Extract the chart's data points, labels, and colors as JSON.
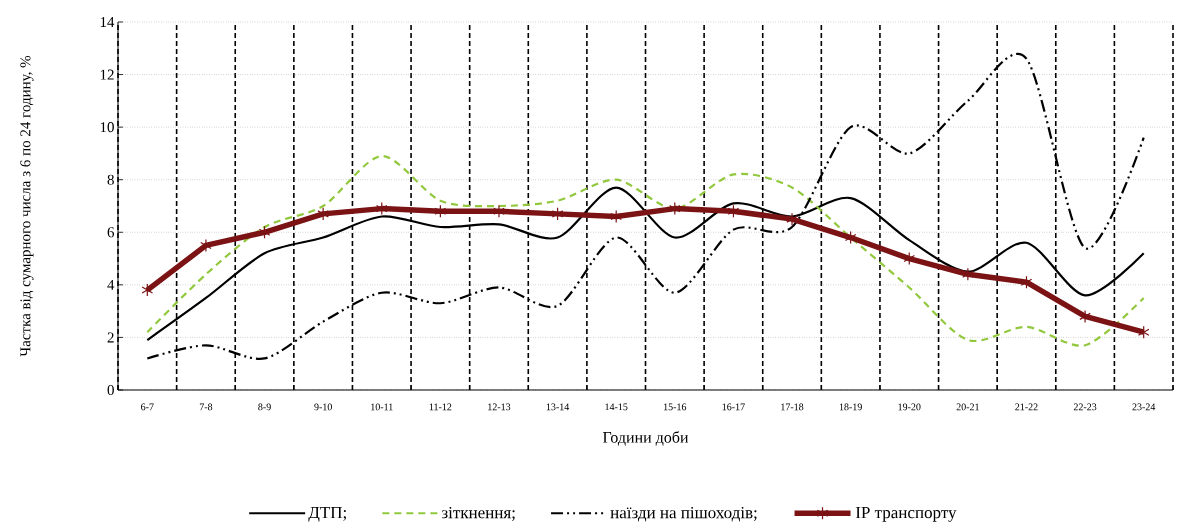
{
  "chart_data": {
    "type": "line",
    "xlabel": "Години доби",
    "ylabel": "Частка від сумарного числа з 6 по 24 годину, %",
    "categories": [
      "6-7",
      "7-8",
      "8-9",
      "9-10",
      "10-11",
      "11-12",
      "12-13",
      "13-14",
      "14-15",
      "15-16",
      "16-17",
      "17-18",
      "18-19",
      "19-20",
      "20-21",
      "21-22",
      "22-23",
      "23-24"
    ],
    "series": [
      {
        "name": "ДТП;",
        "color": "#000000",
        "line_style": "solid",
        "marker": "none",
        "values": [
          1.9,
          3.5,
          5.2,
          5.8,
          6.6,
          6.2,
          6.3,
          5.8,
          7.7,
          5.8,
          7.1,
          6.6,
          7.3,
          5.7,
          4.5,
          5.6,
          3.6,
          5.2
        ]
      },
      {
        "name": "зіткнення;",
        "color": "#92c83e",
        "line_style": "dashed",
        "marker": "none",
        "values": [
          2.2,
          4.4,
          6.2,
          7.0,
          8.9,
          7.2,
          7.0,
          7.2,
          8.0,
          6.9,
          8.2,
          7.7,
          5.8,
          3.9,
          1.9,
          2.4,
          1.7,
          3.5
        ]
      },
      {
        "name": "наїзди на пішоходів;",
        "color": "#000000",
        "line_style": "dashdot",
        "marker": "none",
        "values": [
          1.2,
          1.7,
          1.2,
          2.6,
          3.7,
          3.3,
          3.9,
          3.2,
          5.8,
          3.7,
          6.1,
          6.2,
          10.0,
          9.0,
          11.0,
          12.6,
          5.4,
          9.6
        ]
      },
      {
        "name": "ІР транспорту",
        "color": "#7b1315",
        "line_style": "solid",
        "marker": "cross",
        "values": [
          3.8,
          5.5,
          6.0,
          6.7,
          6.9,
          6.8,
          6.8,
          6.7,
          6.6,
          6.9,
          6.8,
          6.5,
          5.8,
          5.0,
          4.4,
          4.1,
          2.8,
          2.2
        ]
      }
    ],
    "ylim": [
      0,
      14
    ],
    "yticks": [
      0,
      2,
      4,
      6,
      8,
      10,
      12,
      14
    ],
    "grid": true,
    "legend": "bottom"
  }
}
